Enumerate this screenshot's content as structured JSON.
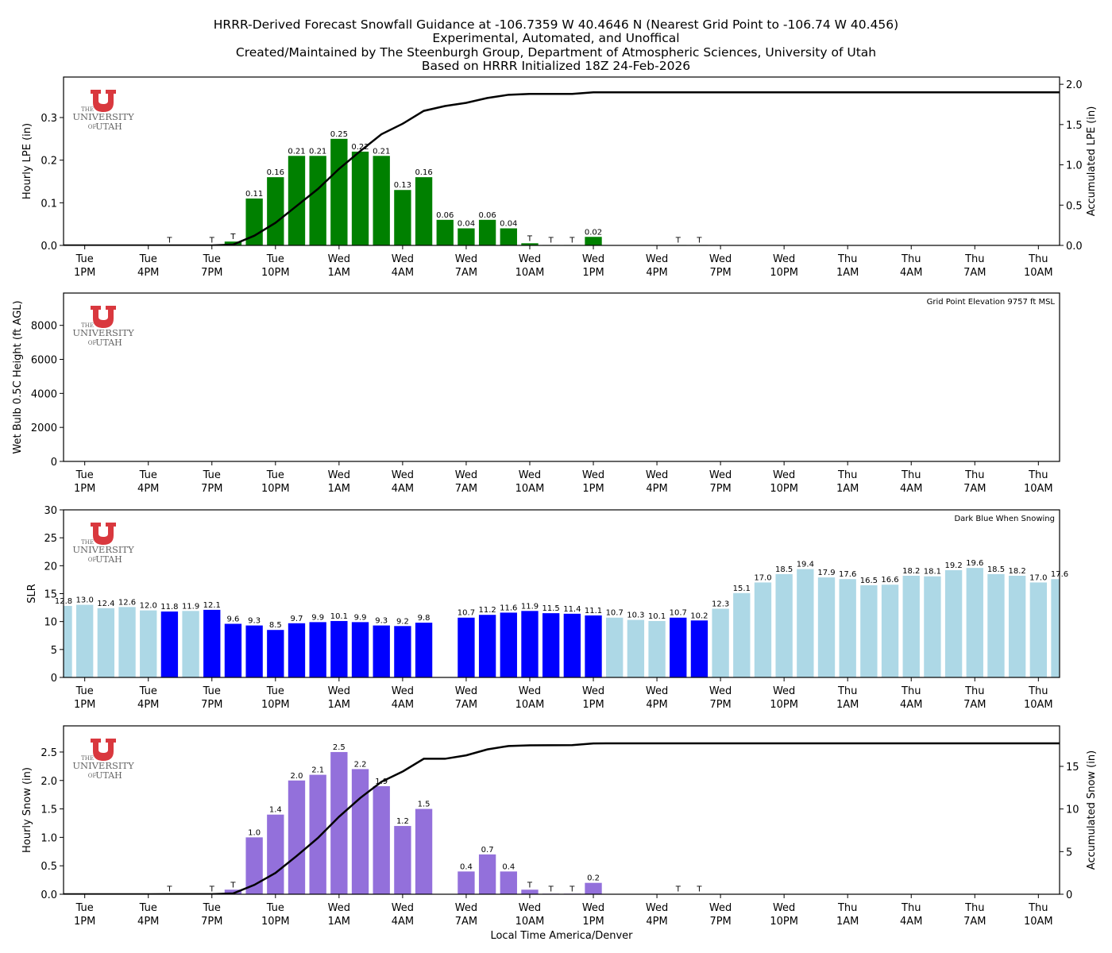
{
  "titles": [
    "HRRR-Derived Forecast Snowfall Guidance at -106.7359 W 40.4646 N (Nearest Grid Point to -106.74 W 40.456)",
    "Experimental, Automated, and Unoffical",
    "Created/Maintained by The Steenburgh Group, Department of Atmospheric Sciences, University of Utah",
    "Based on HRRR Initialized 18Z 24-Feb-2026"
  ],
  "logo": {
    "line1": "THE",
    "line2": "UNIVERSITY",
    "line3a": "OF",
    "line3b": "UTAH",
    "color": "#d9383e"
  },
  "xlabel": "Local Time America/Denver",
  "chart_data": [
    {
      "type": "bar",
      "ylabel": "Hourly LPE (in)",
      "ylabel_right": "Accumulated LPE (in)",
      "ylim": [
        0,
        0.395
      ],
      "ylim_right": [
        0,
        2.09
      ],
      "yticks": [
        "0.0",
        "0.1",
        "0.2",
        "0.3"
      ],
      "yticks_right": [
        "0.0",
        "0.5",
        "1.0",
        "1.5",
        "2.0"
      ],
      "bar_color": "#008000",
      "trace_label": "T",
      "trace_threshold": 0.01,
      "label_decimals": 2,
      "values": [
        0,
        0,
        0,
        0,
        0,
        0.001,
        0,
        0.001,
        0.009,
        0.11,
        0.16,
        0.21,
        0.21,
        0.25,
        0.22,
        0.21,
        0.13,
        0.16,
        0.06,
        0.04,
        0.06,
        0.04,
        0.005,
        0.001,
        0.001,
        0.02,
        0,
        0,
        0,
        0.001,
        0.001,
        0,
        0,
        0,
        0,
        0,
        0,
        0,
        0,
        0,
        0,
        0,
        0,
        0,
        0,
        0,
        0,
        0
      ],
      "accumulated": [
        0,
        0,
        0,
        0,
        0,
        0,
        0,
        0,
        0.01,
        0.12,
        0.28,
        0.49,
        0.7,
        0.95,
        1.17,
        1.38,
        1.51,
        1.67,
        1.73,
        1.77,
        1.83,
        1.87,
        1.88,
        1.88,
        1.88,
        1.9,
        1.9,
        1.9,
        1.9,
        1.9,
        1.9,
        1.9,
        1.9,
        1.9,
        1.9,
        1.9,
        1.9,
        1.9,
        1.9,
        1.9,
        1.9,
        1.9,
        1.9,
        1.9,
        1.9,
        1.9,
        1.9,
        1.9
      ]
    },
    {
      "type": "bar",
      "ylabel": "Wet Bulb 0.5C Height (ft AGL)",
      "ylim": [
        0,
        9900
      ],
      "yticks": [
        "0",
        "2000",
        "4000",
        "6000",
        "8000"
      ],
      "annotation": "Grid Point Elevation 9757 ft MSL",
      "values": []
    },
    {
      "type": "bar",
      "ylabel": "SLR",
      "ylim": [
        0,
        30
      ],
      "yticks": [
        "0",
        "5",
        "10",
        "15",
        "20",
        "25",
        "30"
      ],
      "annotation": "Dark Blue When Snowing",
      "color_snowing": "#0000ff",
      "color_not_snowing": "#add8e6",
      "label_decimals": 1,
      "values": [
        12.8,
        13.0,
        12.4,
        12.6,
        12.0,
        11.8,
        11.9,
        12.1,
        9.6,
        9.3,
        8.5,
        9.7,
        9.9,
        10.1,
        9.9,
        9.3,
        9.2,
        9.8,
        null,
        10.7,
        11.2,
        11.6,
        11.9,
        11.5,
        11.4,
        11.1,
        10.7,
        10.3,
        10.1,
        10.7,
        10.2,
        12.3,
        15.1,
        17.0,
        18.5,
        19.4,
        17.9,
        17.6,
        16.5,
        16.6,
        18.2,
        18.1,
        19.2,
        19.6,
        18.5,
        18.2,
        17.0,
        17.6
      ],
      "snowing": [
        0,
        0,
        0,
        0,
        0,
        1,
        0,
        1,
        1,
        1,
        1,
        1,
        1,
        1,
        1,
        1,
        1,
        1,
        0,
        1,
        1,
        1,
        1,
        1,
        1,
        1,
        0,
        0,
        0,
        1,
        1,
        0,
        0,
        0,
        0,
        0,
        0,
        0,
        0,
        0,
        0,
        0,
        0,
        0,
        0,
        0,
        0,
        0
      ]
    },
    {
      "type": "bar",
      "ylabel": "Hourly Snow (in)",
      "ylabel_right": "Accumulated Snow (in)",
      "ylim": [
        0,
        2.96
      ],
      "ylim_right": [
        0,
        19.75
      ],
      "yticks": [
        "0.0",
        "0.5",
        "1.0",
        "1.5",
        "2.0",
        "2.5"
      ],
      "yticks_right": [
        "0",
        "5",
        "10",
        "15"
      ],
      "bar_color": "#9370db",
      "trace_label": "T",
      "trace_threshold": 0.1,
      "label_decimals": 1,
      "values": [
        0,
        0,
        0,
        0,
        0,
        0.005,
        0,
        0.005,
        0.08,
        1.0,
        1.4,
        2.0,
        2.1,
        2.5,
        2.2,
        1.9,
        1.2,
        1.5,
        0,
        0.4,
        0.7,
        0.4,
        0.08,
        0.01,
        0.01,
        0.2,
        0,
        0,
        0,
        0.005,
        0.005,
        0,
        0,
        0,
        0,
        0,
        0,
        0,
        0,
        0,
        0,
        0,
        0,
        0,
        0,
        0,
        0,
        0
      ],
      "accumulated": [
        0,
        0,
        0,
        0,
        0,
        0.01,
        0.01,
        0.01,
        0.09,
        1.09,
        2.49,
        4.49,
        6.59,
        9.09,
        11.29,
        13.19,
        14.39,
        15.89,
        15.89,
        16.29,
        16.99,
        17.39,
        17.47,
        17.48,
        17.49,
        17.69,
        17.7,
        17.7,
        17.7,
        17.7,
        17.7,
        17.7,
        17.7,
        17.7,
        17.7,
        17.7,
        17.7,
        17.7,
        17.7,
        17.7,
        17.7,
        17.7,
        17.7,
        17.7,
        17.7,
        17.7,
        17.7,
        17.7
      ]
    }
  ],
  "x_axis": {
    "first_bar": "Tue 12PM",
    "step_hours": 1,
    "xlim": [
      "Tue 12PM",
      "Thu 11AM"
    ],
    "ticks": [
      {
        "day": "Tue",
        "time": "1PM"
      },
      {
        "day": "Tue",
        "time": "4PM"
      },
      {
        "day": "Tue",
        "time": "7PM"
      },
      {
        "day": "Tue",
        "time": "10PM"
      },
      {
        "day": "Wed",
        "time": "1AM"
      },
      {
        "day": "Wed",
        "time": "4AM"
      },
      {
        "day": "Wed",
        "time": "7AM"
      },
      {
        "day": "Wed",
        "time": "10AM"
      },
      {
        "day": "Wed",
        "time": "1PM"
      },
      {
        "day": "Wed",
        "time": "4PM"
      },
      {
        "day": "Wed",
        "time": "7PM"
      },
      {
        "day": "Wed",
        "time": "10PM"
      },
      {
        "day": "Thu",
        "time": "1AM"
      },
      {
        "day": "Thu",
        "time": "4AM"
      },
      {
        "day": "Thu",
        "time": "7AM"
      },
      {
        "day": "Thu",
        "time": "10AM"
      }
    ]
  }
}
